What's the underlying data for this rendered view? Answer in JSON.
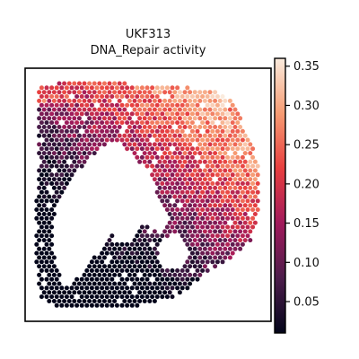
{
  "chart_data": {
    "type": "heatmap",
    "title": [
      "UKF313",
      "DNA_Repair activity"
    ],
    "xlabel": "",
    "ylabel": "",
    "colorbar": {
      "colormap": "rocket",
      "range": [
        0.01,
        0.36
      ],
      "ticks": [
        0.05,
        0.1,
        0.15,
        0.2,
        0.25,
        0.3,
        0.35
      ],
      "tick_labels": [
        "0.05",
        "0.10",
        "0.15",
        "0.20",
        "0.25",
        "0.30",
        "0.35"
      ],
      "placement": "right"
    },
    "grid": false,
    "colors": {
      "low": "#03051a",
      "mid_low": "#4c1d4b",
      "mid": "#a11a5b",
      "mid_high": "#e83f3f",
      "high": "#f69c73",
      "highest": "#faebdd"
    }
  }
}
